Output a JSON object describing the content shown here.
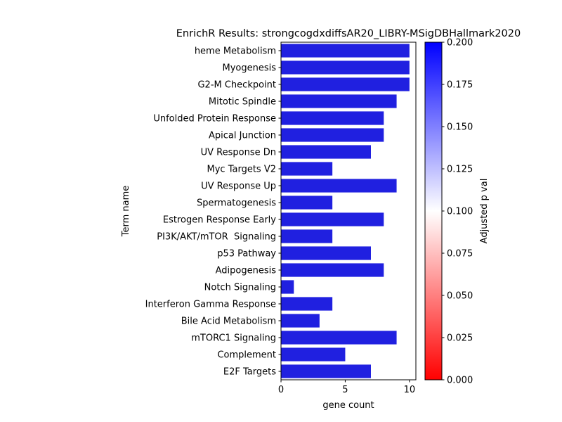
{
  "chart_data": {
    "type": "bar",
    "orientation": "horizontal",
    "title": "EnrichR Results: strongcogdxdiffsAR20_LIBRY-MSigDBHallmark2020",
    "xlabel": "gene count",
    "ylabel": "Term name",
    "xlim": [
      0,
      10.5
    ],
    "x_ticks": [
      "0",
      "5",
      "10"
    ],
    "categories": [
      "heme Metabolism",
      "Myogenesis",
      "G2-M Checkpoint",
      "Mitotic Spindle",
      "Unfolded Protein Response",
      "Apical Junction",
      "UV Response Dn",
      "Myc Targets V2",
      "UV Response Up",
      "Spermatogenesis",
      "Estrogen Response Early",
      "PI3K/AKT/mTOR  Signaling",
      "p53 Pathway",
      "Adipogenesis",
      "Notch Signaling",
      "Interferon Gamma Response",
      "Bile Acid Metabolism",
      "mTORC1 Signaling",
      "Complement",
      "E2F Targets"
    ],
    "values": [
      10,
      10,
      10,
      9,
      8,
      8,
      7,
      4,
      9,
      4,
      8,
      4,
      7,
      8,
      1,
      4,
      3,
      9,
      5,
      7
    ],
    "bar_color": "#2020e0",
    "grid": false,
    "colorbar": {
      "label": "Adjusted p val",
      "range": [
        0,
        0.2
      ],
      "ticks": [
        "0.000",
        "0.025",
        "0.050",
        "0.075",
        "0.100",
        "0.125",
        "0.150",
        "0.175",
        "0.200"
      ],
      "colors": [
        "#ff0000",
        "#ffffff",
        "#0000ff"
      ]
    }
  }
}
